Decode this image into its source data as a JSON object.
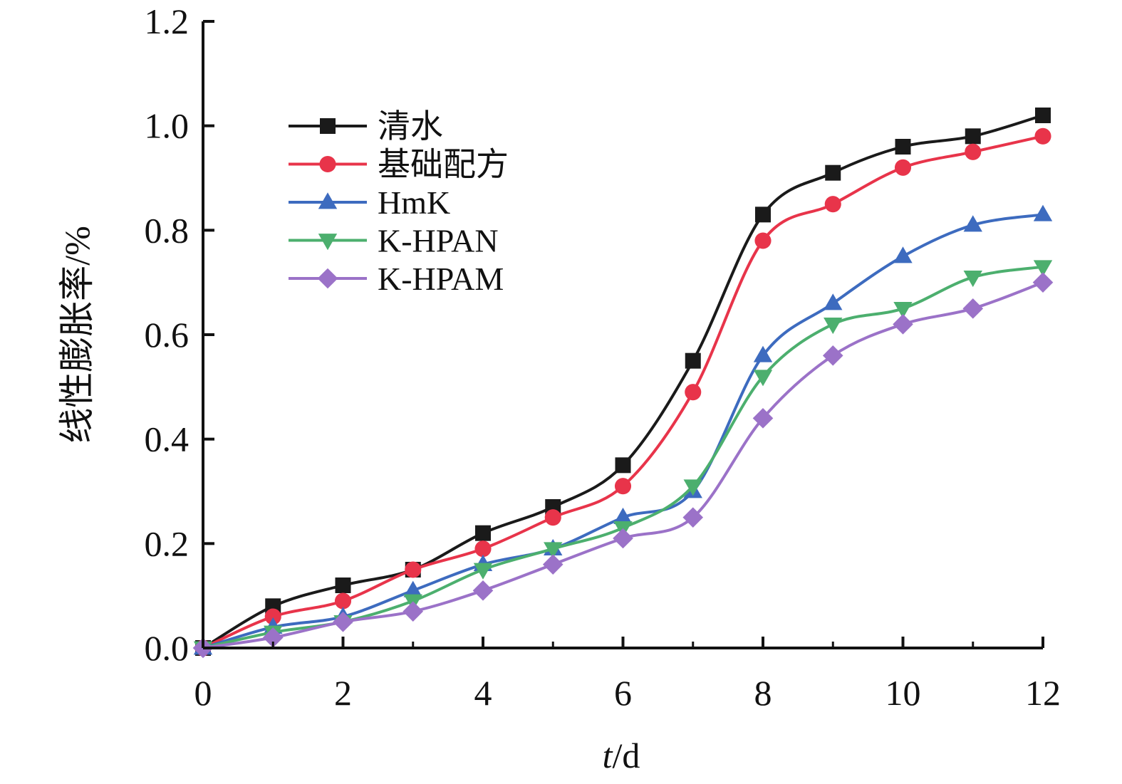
{
  "chart_data": {
    "type": "line",
    "xlabel_var": "t",
    "xlabel_unit": "/d",
    "ylabel": "线性膨胀率/%",
    "xlim": [
      0,
      12
    ],
    "ylim": [
      0,
      1.2
    ],
    "x_ticks": [
      "0",
      "2",
      "4",
      "6",
      "8",
      "10",
      "12"
    ],
    "y_ticks": [
      "0.0",
      "0.2",
      "0.4",
      "0.6",
      "0.8",
      "1.0",
      "1.2"
    ],
    "grid": false,
    "legend_position": "upper-left",
    "x": [
      0,
      1,
      2,
      3,
      4,
      5,
      6,
      7,
      8,
      9,
      10,
      11,
      12
    ],
    "series": [
      {
        "name": "清水",
        "color": "#1a1a1a",
        "marker": "square",
        "values": [
          0,
          0.08,
          0.12,
          0.15,
          0.22,
          0.27,
          0.35,
          0.55,
          0.83,
          0.91,
          0.96,
          0.98,
          1.02
        ]
      },
      {
        "name": "基础配方",
        "color": "#e8344a",
        "marker": "circle",
        "values": [
          0,
          0.06,
          0.09,
          0.15,
          0.19,
          0.25,
          0.31,
          0.49,
          0.78,
          0.85,
          0.92,
          0.95,
          0.98
        ]
      },
      {
        "name": "HmK",
        "color": "#3d6bbf",
        "marker": "triangle-up",
        "values": [
          0,
          0.04,
          0.06,
          0.11,
          0.16,
          0.19,
          0.25,
          0.3,
          0.56,
          0.66,
          0.75,
          0.81,
          0.83
        ]
      },
      {
        "name": "K-HPAN",
        "color": "#4caf6e",
        "marker": "triangle-down",
        "values": [
          0,
          0.03,
          0.05,
          0.09,
          0.15,
          0.19,
          0.23,
          0.31,
          0.52,
          0.62,
          0.65,
          0.71,
          0.73
        ]
      },
      {
        "name": "K-HPAM",
        "color": "#9b72c8",
        "marker": "diamond",
        "values": [
          0,
          0.02,
          0.05,
          0.07,
          0.11,
          0.16,
          0.21,
          0.25,
          0.44,
          0.56,
          0.62,
          0.65,
          0.7
        ]
      }
    ]
  }
}
